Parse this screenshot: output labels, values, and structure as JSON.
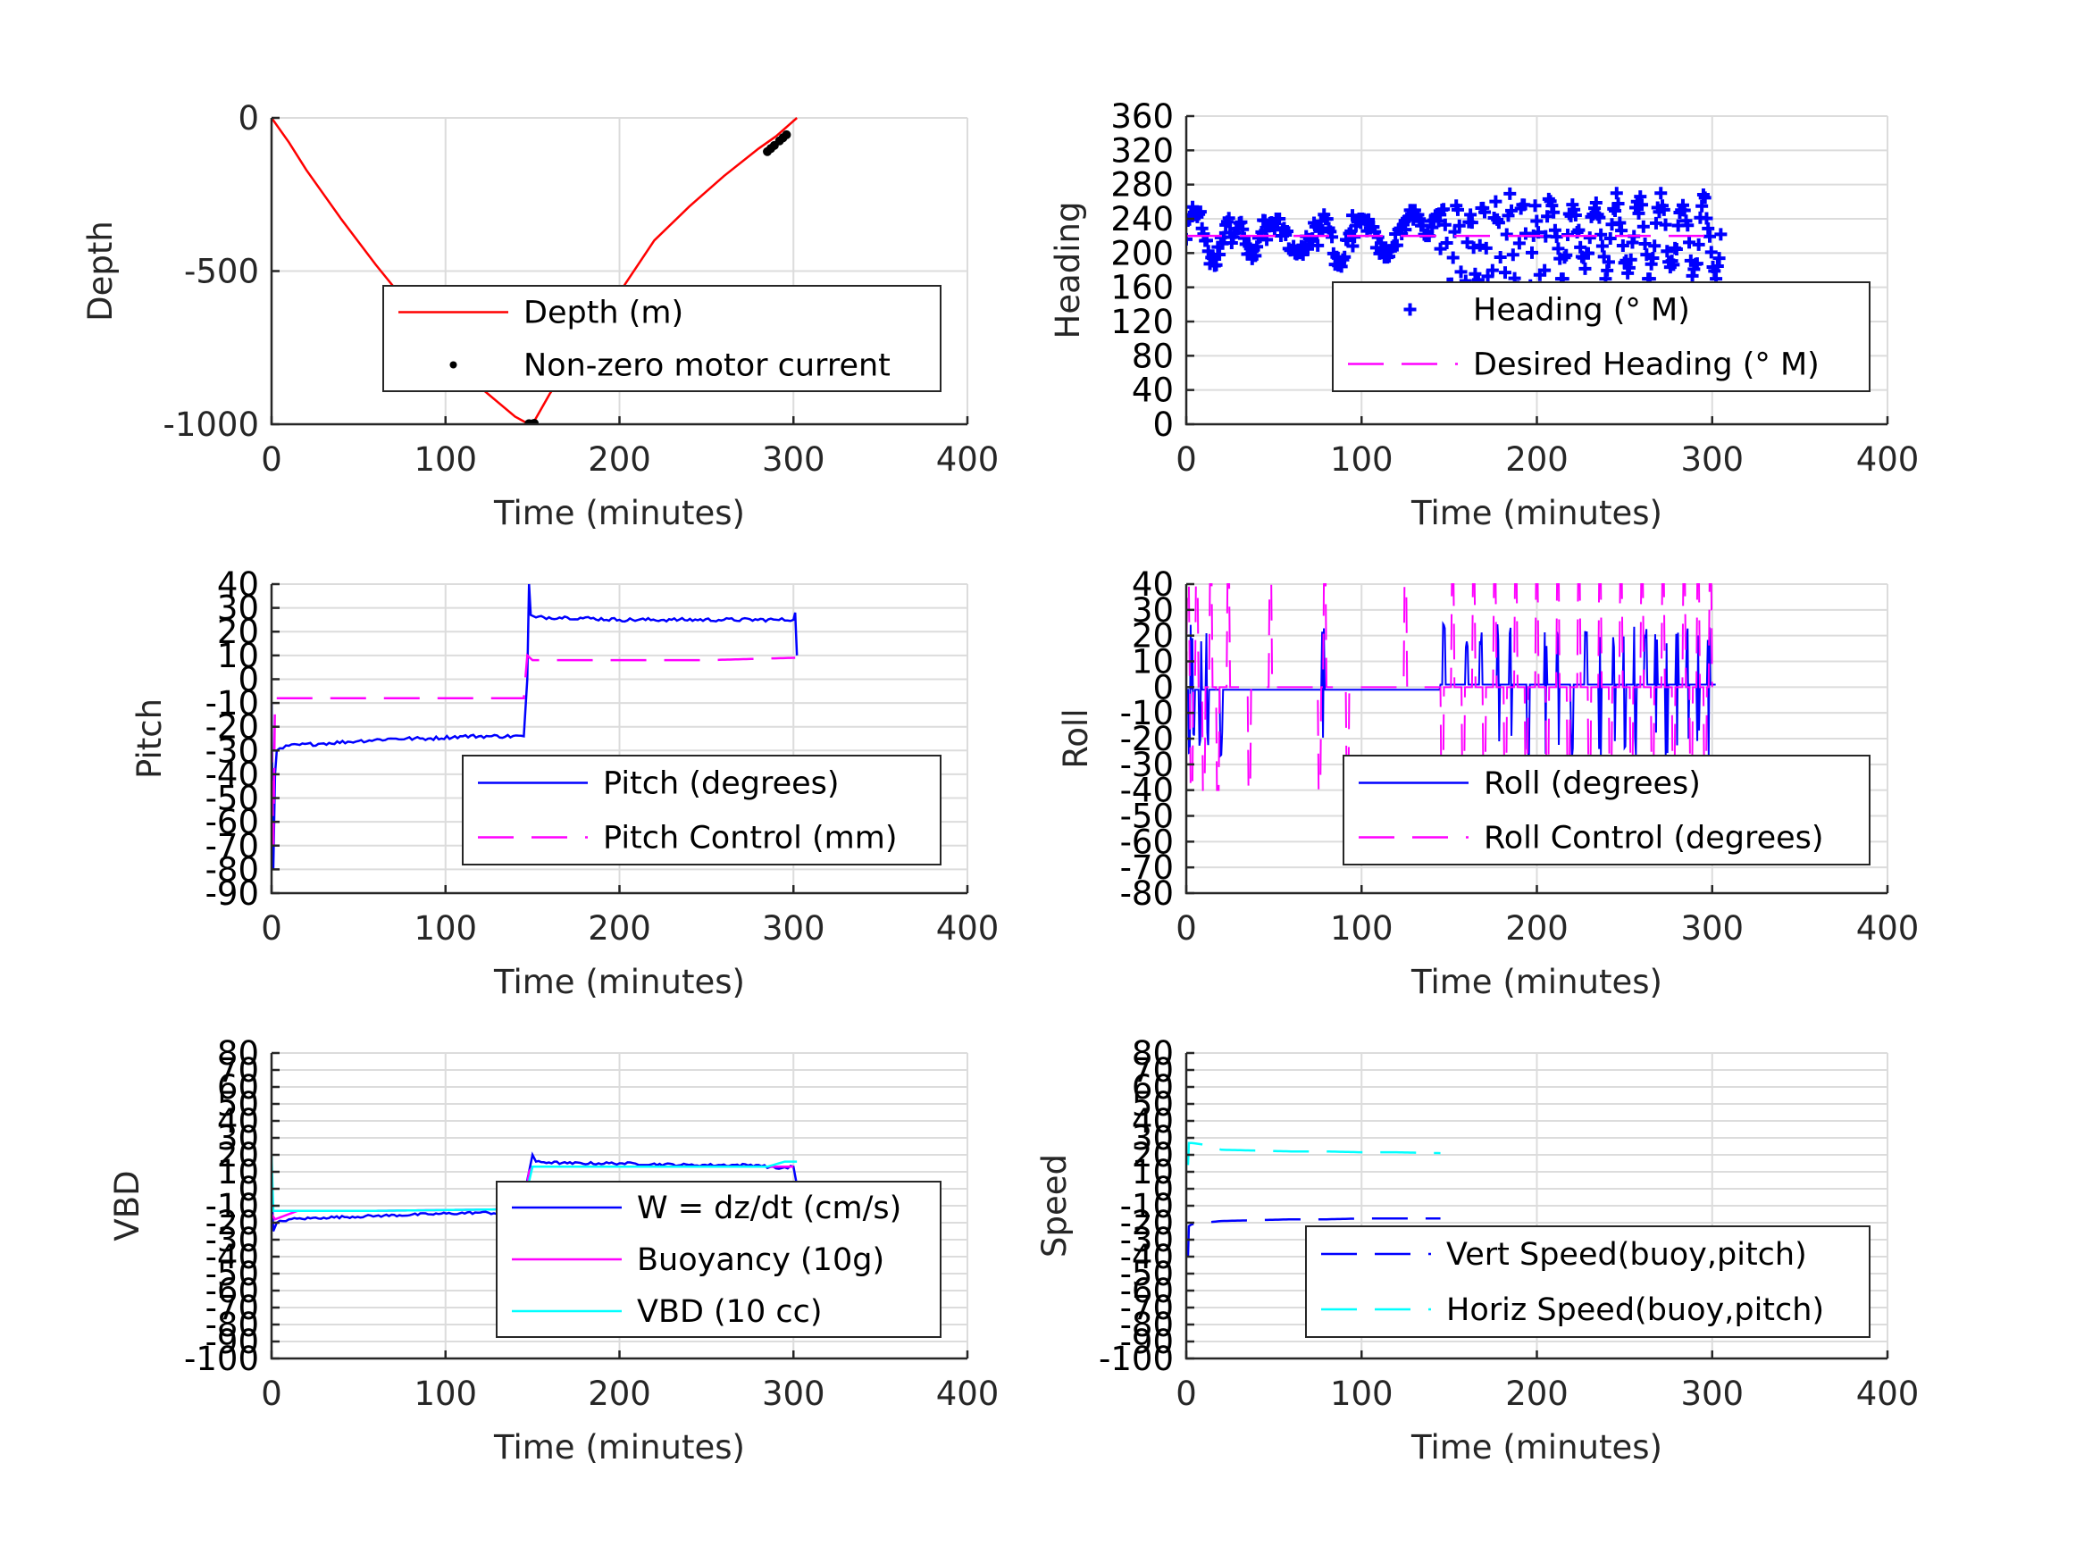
{
  "figure": {
    "background": "#ffffff"
  },
  "chart_data": [
    {
      "id": "depth",
      "type": "line",
      "xlabel": "Time (minutes)",
      "ylabel": "Depth",
      "xlim": [
        0,
        400
      ],
      "ylim": [
        -1000,
        0
      ],
      "xticks": [
        0,
        100,
        200,
        300,
        400
      ],
      "yticks": [
        -1000,
        -500,
        0
      ],
      "grid": true,
      "legend_position": "center-right",
      "series": [
        {
          "name": "Depth (m)",
          "style": "solid",
          "color": "#ff0000",
          "x": [
            0,
            10,
            20,
            40,
            60,
            80,
            100,
            120,
            140,
            148,
            150,
            160,
            180,
            200,
            220,
            240,
            260,
            280,
            290,
            300,
            302
          ],
          "y": [
            0,
            -80,
            -170,
            -330,
            -480,
            -620,
            -760,
            -880,
            -975,
            -1000,
            -1000,
            -900,
            -740,
            -570,
            -400,
            -290,
            -190,
            -100,
            -60,
            -10,
            0
          ]
        },
        {
          "name": "Non-zero motor current",
          "style": "dots",
          "color": "#000000",
          "x": [
            148,
            149,
            150,
            151,
            285,
            287,
            289,
            292,
            294,
            296
          ],
          "y": [
            -998,
            -1000,
            -999,
            -997,
            -110,
            -100,
            -90,
            -75,
            -65,
            -55
          ]
        }
      ]
    },
    {
      "id": "heading",
      "type": "scatter",
      "xlabel": "Time (minutes)",
      "ylabel": "Heading",
      "xlim": [
        0,
        400
      ],
      "ylim": [
        0,
        360
      ],
      "xticks": [
        0,
        100,
        200,
        300,
        400
      ],
      "yticks": [
        0,
        40,
        80,
        120,
        160,
        200,
        240,
        280,
        320,
        360
      ],
      "grid": true,
      "legend_position": "center-right",
      "series": [
        {
          "name": "Heading (° M)",
          "style": "plus-markers",
          "color": "#0000ff",
          "segments": [
            {
              "x_start": 0,
              "x_end": 25,
              "y_min": 185,
              "y_max": 255
            },
            {
              "x_start": 25,
              "x_end": 45,
              "y_min": 190,
              "y_max": 240
            },
            {
              "x_start": 45,
              "x_end": 75,
              "y_min": 195,
              "y_max": 240
            },
            {
              "x_start": 75,
              "x_end": 95,
              "y_min": 180,
              "y_max": 245
            },
            {
              "x_start": 95,
              "x_end": 125,
              "y_min": 195,
              "y_max": 240
            },
            {
              "x_start": 125,
              "x_end": 145,
              "y_min": 220,
              "y_max": 250
            },
            {
              "x_start": 145,
              "x_end": 205,
              "y_min": 135,
              "y_max": 275
            },
            {
              "x_start": 205,
              "x_end": 305,
              "y_min": 170,
              "y_max": 270
            }
          ]
        },
        {
          "name": "Desired Heading (° M)",
          "style": "dashed",
          "color": "#ff00ff",
          "x": [
            0,
            300
          ],
          "y": [
            220,
            220
          ]
        }
      ]
    },
    {
      "id": "pitch",
      "type": "line",
      "xlabel": "Time (minutes)",
      "ylabel": "Pitch",
      "xlim": [
        0,
        400
      ],
      "ylim": [
        -90,
        40
      ],
      "xticks": [
        0,
        100,
        200,
        300,
        400
      ],
      "yticks": [
        -90,
        -80,
        -70,
        -60,
        -50,
        -40,
        -30,
        -20,
        -10,
        0,
        10,
        20,
        30,
        40
      ],
      "grid": true,
      "legend_position": "bottom-right",
      "series": [
        {
          "name": "Pitch (degrees)",
          "style": "solid",
          "color": "#0000ff",
          "x": [
            0,
            1,
            2,
            3,
            10,
            30,
            50,
            70,
            90,
            110,
            125,
            145,
            147,
            148,
            149,
            152,
            170,
            200,
            230,
            260,
            290,
            300,
            301,
            302
          ],
          "y": [
            -10,
            -80,
            -40,
            -30,
            -28,
            -27,
            -26,
            -25,
            -25,
            -24,
            -24,
            -24,
            0,
            40,
            27,
            26,
            26,
            25,
            25,
            25,
            25,
            25,
            28,
            10
          ]
        },
        {
          "name": "Pitch Control (mm)",
          "style": "dashed",
          "color": "#ff00ff",
          "x": [
            0,
            1,
            2,
            10,
            50,
            100,
            145,
            147,
            150,
            200,
            250,
            300,
            301
          ],
          "y": [
            -20,
            -70,
            -8,
            -8,
            -8,
            -8,
            -8,
            10,
            8,
            8,
            8,
            9,
            9
          ]
        }
      ]
    },
    {
      "id": "roll",
      "type": "line",
      "xlabel": "Time (minutes)",
      "ylabel": "Roll",
      "xlim": [
        0,
        400
      ],
      "ylim": [
        -80,
        40
      ],
      "xticks": [
        0,
        100,
        200,
        300,
        400
      ],
      "yticks": [
        -80,
        -70,
        -60,
        -50,
        -40,
        -30,
        -20,
        -10,
        0,
        10,
        20,
        30,
        40
      ],
      "grid": true,
      "legend_position": "bottom-right",
      "series": [
        {
          "name": "Roll (degrees)",
          "style": "solid",
          "color": "#0000ff",
          "baseline_early": -1,
          "baseline_late": 1,
          "spike_max": 25,
          "spike_min": -28
        },
        {
          "name": "Roll Control (degrees)",
          "style": "dashed",
          "color": "#ff00ff",
          "baseline": 0,
          "spike_max": 40,
          "spike_min": -40
        }
      ]
    },
    {
      "id": "vbd",
      "type": "line",
      "xlabel": "Time (minutes)",
      "ylabel": "VBD",
      "xlim": [
        0,
        400
      ],
      "ylim": [
        -100,
        80
      ],
      "xticks": [
        0,
        100,
        200,
        300,
        400
      ],
      "yticks": [
        -100,
        -90,
        -80,
        -70,
        -60,
        -50,
        -40,
        -30,
        -20,
        -10,
        0,
        10,
        20,
        30,
        40,
        50,
        60,
        70,
        80
      ],
      "grid": true,
      "legend_position": "center-right",
      "series": [
        {
          "name": "W = dz/dt (cm/s)",
          "style": "solid",
          "color": "#0000ff",
          "x": [
            0,
            1,
            3,
            10,
            30,
            60,
            90,
            120,
            145,
            147,
            150,
            152,
            170,
            200,
            240,
            280,
            290,
            300,
            302
          ],
          "y": [
            0,
            -25,
            -20,
            -18,
            -17,
            -16,
            -15,
            -14,
            -15,
            5,
            20,
            16,
            15,
            15,
            14,
            14,
            12,
            13,
            2
          ]
        },
        {
          "name": "Buoyancy (10g)",
          "style": "solid",
          "color": "#ff00ff",
          "x": [
            0,
            2,
            15,
            60,
            145,
            148,
            150,
            300
          ],
          "y": [
            -15,
            -18,
            -13,
            -13,
            -12,
            10,
            13,
            13
          ]
        },
        {
          "name": "VBD (10 cc)",
          "style": "solid",
          "color": "#00ffff",
          "x": [
            0,
            1,
            3,
            60,
            145,
            147,
            150,
            285,
            295,
            302
          ],
          "y": [
            20,
            -13,
            -13,
            -13,
            -12,
            0,
            13,
            13,
            16,
            16
          ]
        }
      ]
    },
    {
      "id": "speed",
      "type": "line",
      "xlabel": "Time (minutes)",
      "ylabel": "Speed",
      "xlim": [
        0,
        400
      ],
      "ylim": [
        -100,
        80
      ],
      "xticks": [
        0,
        100,
        200,
        300,
        400
      ],
      "yticks": [
        -100,
        -90,
        -80,
        -70,
        -60,
        -50,
        -40,
        -30,
        -20,
        -10,
        0,
        10,
        20,
        30,
        40,
        50,
        60,
        70,
        80
      ],
      "grid": true,
      "legend_position": "bottom-right",
      "series": [
        {
          "name": "Vert Speed(buoy,pitch)",
          "style": "dashed",
          "color": "#0000ff",
          "x": [
            1,
            1.5,
            3,
            10,
            20,
            40,
            60,
            80,
            100,
            120,
            145
          ],
          "y": [
            -40,
            -22,
            -21,
            -20,
            -19,
            -18.5,
            -18,
            -18,
            -17.5,
            -17.5,
            -17.5
          ]
        },
        {
          "name": "Horiz Speed(buoy,pitch)",
          "style": "dashed",
          "color": "#00ffff",
          "x": [
            1,
            1.5,
            3,
            10,
            20,
            40,
            60,
            80,
            100,
            120,
            145
          ],
          "y": [
            14,
            27,
            27,
            26,
            23,
            22.5,
            22,
            22,
            21.5,
            21.5,
            21
          ]
        }
      ]
    }
  ]
}
